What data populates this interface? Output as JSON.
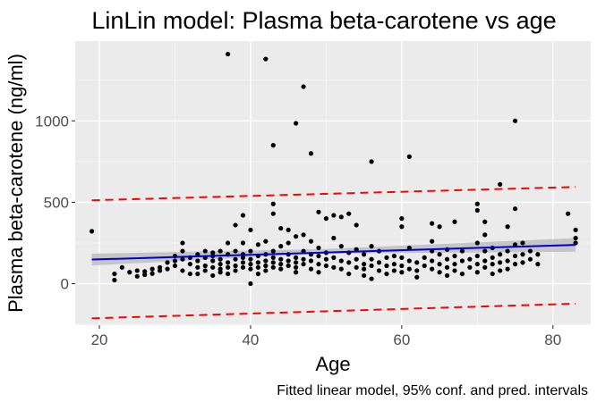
{
  "chart_data": {
    "type": "scatter",
    "title": "LinLin model: Plasma beta-carotene vs age",
    "xlabel": "Age",
    "ylabel": "Plasma beta-carotene (ng/ml)",
    "caption": "Fitted linear model, 95% conf. and pred. intervals",
    "xlim": [
      16.8,
      85.0
    ],
    "ylim": [
      -255,
      1490
    ],
    "x_ticks": [
      20,
      40,
      60,
      80
    ],
    "y_ticks": [
      0,
      500,
      1000
    ],
    "x_tick_labels": [
      "20",
      "40",
      "60",
      "80"
    ],
    "y_tick_labels": [
      "0",
      "500",
      "1000"
    ],
    "grid": true,
    "fit": {
      "type": "linear",
      "x": [
        19,
        83
      ],
      "y": [
        148,
        238
      ],
      "color": "#0000cd"
    },
    "confidence_band": {
      "x": [
        19,
        50,
        83
      ],
      "lower": [
        112,
        185,
        196
      ],
      "upper": [
        184,
        213,
        280
      ],
      "color": "#bebebe"
    },
    "prediction_band": {
      "x": [
        19,
        83
      ],
      "lower": [
        -213,
        -123
      ],
      "upper": [
        512,
        594
      ],
      "color": "#ff0000"
    },
    "points": [
      [
        19,
        322
      ],
      [
        22,
        22
      ],
      [
        22,
        60
      ],
      [
        23,
        100
      ],
      [
        24,
        70
      ],
      [
        25,
        80
      ],
      [
        25,
        45
      ],
      [
        26,
        75
      ],
      [
        26,
        55
      ],
      [
        27,
        90
      ],
      [
        27,
        62
      ],
      [
        28,
        80
      ],
      [
        28,
        100
      ],
      [
        29,
        130
      ],
      [
        29,
        90
      ],
      [
        30,
        170
      ],
      [
        30,
        110
      ],
      [
        30,
        140
      ],
      [
        31,
        80
      ],
      [
        31,
        250
      ],
      [
        31,
        200
      ],
      [
        31,
        150
      ],
      [
        32,
        160
      ],
      [
        32,
        120
      ],
      [
        32,
        60
      ],
      [
        33,
        180
      ],
      [
        33,
        100
      ],
      [
        33,
        140
      ],
      [
        33,
        60
      ],
      [
        34,
        160
      ],
      [
        34,
        110
      ],
      [
        34,
        200
      ],
      [
        34,
        80
      ],
      [
        35,
        140
      ],
      [
        35,
        100
      ],
      [
        35,
        190
      ],
      [
        35,
        50
      ],
      [
        35,
        170
      ],
      [
        36,
        120
      ],
      [
        36,
        150
      ],
      [
        36,
        90
      ],
      [
        36,
        200
      ],
      [
        36,
        70
      ],
      [
        37,
        1410
      ],
      [
        37,
        130
      ],
      [
        37,
        180
      ],
      [
        37,
        100
      ],
      [
        37,
        60
      ],
      [
        37,
        250
      ],
      [
        38,
        150
      ],
      [
        38,
        110
      ],
      [
        38,
        360
      ],
      [
        38,
        200
      ],
      [
        38,
        80
      ],
      [
        39,
        160
      ],
      [
        39,
        130
      ],
      [
        39,
        100
      ],
      [
        39,
        250
      ],
      [
        39,
        420
      ],
      [
        39,
        180
      ],
      [
        40,
        150
      ],
      [
        40,
        120
      ],
      [
        40,
        0
      ],
      [
        40,
        200
      ],
      [
        40,
        90
      ],
      [
        40,
        330
      ],
      [
        41,
        170
      ],
      [
        41,
        130
      ],
      [
        41,
        100
      ],
      [
        41,
        240
      ],
      [
        41,
        60
      ],
      [
        42,
        1380
      ],
      [
        42,
        180
      ],
      [
        42,
        140
      ],
      [
        42,
        110
      ],
      [
        42,
        260
      ],
      [
        42,
        80
      ],
      [
        43,
        850
      ],
      [
        43,
        160
      ],
      [
        43,
        130
      ],
      [
        43,
        490
      ],
      [
        43,
        430
      ],
      [
        43,
        200
      ],
      [
        43,
        100
      ],
      [
        44,
        230
      ],
      [
        44,
        150
      ],
      [
        44,
        120
      ],
      [
        44,
        340
      ],
      [
        44,
        90
      ],
      [
        45,
        330
      ],
      [
        45,
        180
      ],
      [
        45,
        140
      ],
      [
        45,
        110
      ],
      [
        45,
        250
      ],
      [
        46,
        985
      ],
      [
        46,
        160
      ],
      [
        46,
        130
      ],
      [
        46,
        290
      ],
      [
        46,
        100
      ],
      [
        46,
        70
      ],
      [
        47,
        1210
      ],
      [
        47,
        300
      ],
      [
        47,
        200
      ],
      [
        47,
        150
      ],
      [
        47,
        120
      ],
      [
        48,
        800
      ],
      [
        48,
        260
      ],
      [
        48,
        180
      ],
      [
        48,
        140
      ],
      [
        48,
        90
      ],
      [
        49,
        440
      ],
      [
        49,
        220
      ],
      [
        49,
        170
      ],
      [
        49,
        120
      ],
      [
        49,
        70
      ],
      [
        50,
        400
      ],
      [
        50,
        190
      ],
      [
        50,
        150
      ],
      [
        50,
        110
      ],
      [
        51,
        420
      ],
      [
        51,
        280
      ],
      [
        51,
        160
      ],
      [
        51,
        100
      ],
      [
        52,
        410
      ],
      [
        52,
        230
      ],
      [
        52,
        140
      ],
      [
        52,
        90
      ],
      [
        53,
        430
      ],
      [
        53,
        190
      ],
      [
        53,
        130
      ],
      [
        53,
        60
      ],
      [
        54,
        360
      ],
      [
        54,
        210
      ],
      [
        54,
        150
      ],
      [
        54,
        100
      ],
      [
        55,
        180
      ],
      [
        55,
        120
      ],
      [
        55,
        90
      ],
      [
        55,
        50
      ],
      [
        56,
        750
      ],
      [
        56,
        230
      ],
      [
        56,
        150
      ],
      [
        56,
        110
      ],
      [
        56,
        30
      ],
      [
        57,
        200
      ],
      [
        57,
        130
      ],
      [
        57,
        80
      ],
      [
        58,
        160
      ],
      [
        58,
        110
      ],
      [
        58,
        60
      ],
      [
        59,
        170
      ],
      [
        59,
        120
      ],
      [
        59,
        80
      ],
      [
        60,
        400
      ],
      [
        60,
        350
      ],
      [
        60,
        160
      ],
      [
        60,
        110
      ],
      [
        60,
        70
      ],
      [
        61,
        780
      ],
      [
        61,
        220
      ],
      [
        61,
        140
      ],
      [
        61,
        90
      ],
      [
        62,
        130
      ],
      [
        62,
        80
      ],
      [
        62,
        40
      ],
      [
        63,
        160
      ],
      [
        63,
        110
      ],
      [
        64,
        370
      ],
      [
        64,
        260
      ],
      [
        64,
        200
      ],
      [
        64,
        140
      ],
      [
        64,
        90
      ],
      [
        65,
        350
      ],
      [
        65,
        180
      ],
      [
        65,
        120
      ],
      [
        65,
        70
      ],
      [
        66,
        210
      ],
      [
        66,
        150
      ],
      [
        66,
        100
      ],
      [
        66,
        50
      ],
      [
        67,
        380
      ],
      [
        67,
        170
      ],
      [
        67,
        120
      ],
      [
        67,
        80
      ],
      [
        68,
        200
      ],
      [
        68,
        140
      ],
      [
        68,
        60
      ],
      [
        69,
        150
      ],
      [
        69,
        100
      ],
      [
        70,
        490
      ],
      [
        70,
        450
      ],
      [
        70,
        250
      ],
      [
        70,
        170
      ],
      [
        70,
        120
      ],
      [
        70,
        70
      ],
      [
        71,
        380
      ],
      [
        71,
        300
      ],
      [
        71,
        200
      ],
      [
        71,
        140
      ],
      [
        71,
        100
      ],
      [
        72,
        220
      ],
      [
        72,
        160
      ],
      [
        72,
        120
      ],
      [
        72,
        60
      ],
      [
        73,
        610
      ],
      [
        73,
        180
      ],
      [
        73,
        130
      ],
      [
        73,
        80
      ],
      [
        74,
        350
      ],
      [
        74,
        200
      ],
      [
        74,
        140
      ],
      [
        74,
        90
      ],
      [
        75,
        1000
      ],
      [
        75,
        460
      ],
      [
        75,
        240
      ],
      [
        75,
        170
      ],
      [
        75,
        120
      ],
      [
        76,
        250
      ],
      [
        76,
        180
      ],
      [
        76,
        130
      ],
      [
        77,
        200
      ],
      [
        77,
        150
      ],
      [
        78,
        180
      ],
      [
        78,
        120
      ],
      [
        82,
        430
      ],
      [
        83,
        330
      ],
      [
        83,
        280
      ],
      [
        83,
        250
      ]
    ]
  }
}
